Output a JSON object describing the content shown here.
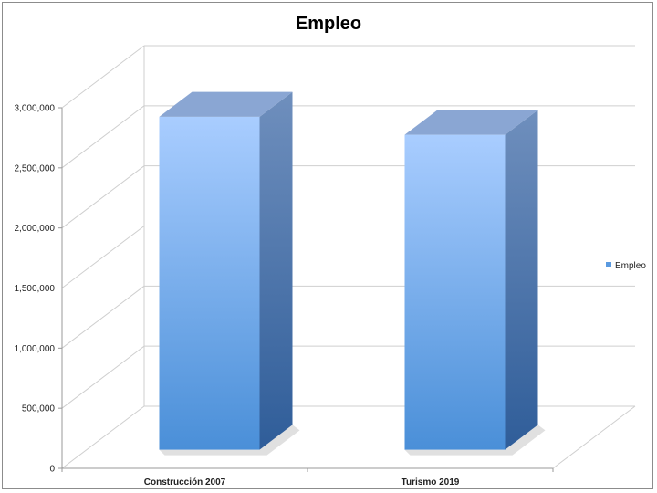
{
  "chart_data": {
    "type": "bar",
    "title": "Empleo",
    "categories": [
      "Construcción 2007",
      "Turismo 2019"
    ],
    "series": [
      {
        "name": "Empleo",
        "values": [
          2770000,
          2620000
        ]
      }
    ],
    "ylim": [
      0,
      3000000
    ],
    "yticks": [
      "0",
      "500,000",
      "1,000,000",
      "1,500,000",
      "2,000,000",
      "2,500,000",
      "3,000,000"
    ],
    "xlabel": "",
    "ylabel": "",
    "grid": true,
    "legend": "right",
    "style": "3d-column",
    "colors": {
      "bar_top_light": "#a9cdff",
      "bar_bottom": "#4a8fd8",
      "bar_side_top": "#6f8fbd",
      "bar_side_bottom": "#2f5d99",
      "bar_cap": "#8aa6d3",
      "grid": "#cfcfcf",
      "axis": "#9a9a9a"
    }
  }
}
